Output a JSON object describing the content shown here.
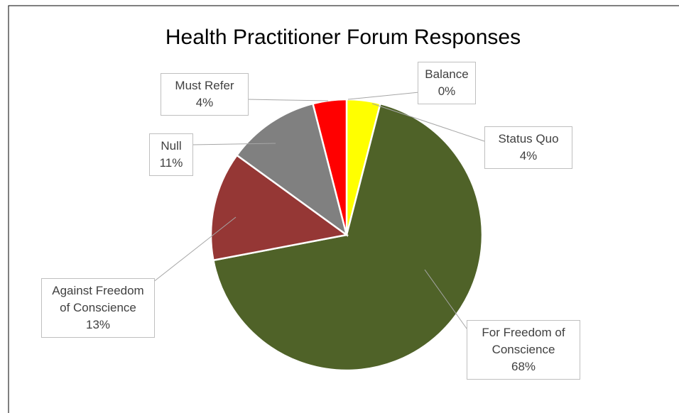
{
  "chart_data": {
    "type": "pie",
    "title": "Health Practitioner Forum Responses",
    "categories": [
      "Balance",
      "Status Quo",
      "For Freedom of Conscience",
      "Against Freedom of Conscience",
      "Null",
      "Must Refer"
    ],
    "values": [
      0,
      4,
      68,
      13,
      11,
      4
    ],
    "value_labels": [
      "0%",
      "4%",
      "68%",
      "13%",
      "11%",
      "4%"
    ],
    "colors": [
      "#4472c4",
      "#ffff00",
      "#4f6228",
      "#953735",
      "#808080",
      "#ff0000"
    ]
  }
}
